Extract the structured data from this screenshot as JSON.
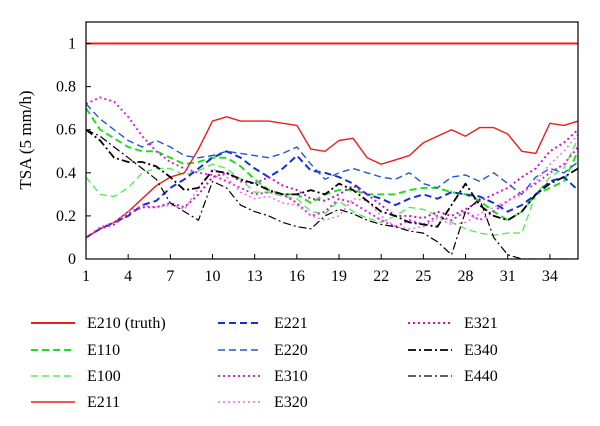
{
  "chart_data": {
    "type": "line",
    "ylabel": "TSA (5 mm/h)",
    "xlabel": "",
    "xlim": [
      1,
      36
    ],
    "ylim": [
      0,
      1.1
    ],
    "xticks": [
      1,
      4,
      7,
      10,
      13,
      16,
      19,
      22,
      25,
      28,
      31,
      34
    ],
    "yticks": [
      0,
      0.2,
      0.4,
      0.6,
      0.8,
      1
    ],
    "ytick_labels": [
      "0",
      "0.2",
      "0.4",
      "0.6",
      "0.8",
      "1"
    ],
    "grid": false,
    "legend_position": "bottom",
    "series": [
      {
        "name": "E210 (truth)",
        "color": "#e8201c",
        "dash": "solid",
        "width": 2.0,
        "x": [
          1,
          36
        ],
        "y": [
          1.0,
          1.0
        ]
      },
      {
        "name": "E110",
        "color": "#22dd22",
        "dash": "dashed",
        "width": 2.0,
        "x": [
          1,
          2,
          3,
          4,
          5,
          6,
          7,
          8,
          9,
          10,
          11,
          12,
          13,
          14,
          15,
          16,
          17,
          18,
          19,
          20,
          21,
          22,
          23,
          24,
          25,
          26,
          27,
          28,
          29,
          30,
          31,
          32,
          33,
          34,
          35,
          36
        ],
        "y": [
          0.7,
          0.6,
          0.56,
          0.52,
          0.5,
          0.5,
          0.47,
          0.44,
          0.45,
          0.47,
          0.47,
          0.43,
          0.37,
          0.32,
          0.3,
          0.3,
          0.26,
          0.3,
          0.32,
          0.32,
          0.3,
          0.3,
          0.3,
          0.32,
          0.33,
          0.33,
          0.31,
          0.3,
          0.27,
          0.22,
          0.18,
          0.22,
          0.3,
          0.33,
          0.36,
          0.5
        ]
      },
      {
        "name": "E100",
        "color": "#55ee55",
        "dash": "dashed",
        "width": 1.4,
        "x": [
          1,
          2,
          3,
          4,
          5,
          6,
          7,
          8,
          9,
          10,
          11,
          12,
          13,
          14,
          15,
          16,
          17,
          18,
          19,
          20,
          21,
          22,
          23,
          24,
          25,
          26,
          27,
          28,
          29,
          30,
          31,
          32,
          33,
          34,
          35,
          36
        ],
        "y": [
          0.38,
          0.3,
          0.29,
          0.33,
          0.4,
          0.42,
          0.42,
          0.39,
          0.41,
          0.44,
          0.42,
          0.37,
          0.31,
          0.31,
          0.29,
          0.28,
          0.22,
          0.21,
          0.27,
          0.22,
          0.19,
          0.17,
          0.2,
          0.24,
          0.23,
          0.2,
          0.17,
          0.14,
          0.12,
          0.11,
          0.12,
          0.12,
          0.3,
          0.38,
          0.42,
          0.56
        ]
      },
      {
        "name": "E211",
        "color": "#e8201c",
        "dash": "solid",
        "width": 1.4,
        "x": [
          1,
          2,
          3,
          4,
          5,
          6,
          7,
          8,
          9,
          10,
          11,
          12,
          13,
          14,
          15,
          16,
          17,
          18,
          19,
          20,
          21,
          22,
          23,
          24,
          25,
          26,
          27,
          28,
          29,
          30,
          31,
          32,
          33,
          34,
          35,
          36
        ],
        "y": [
          0.1,
          0.14,
          0.17,
          0.22,
          0.28,
          0.34,
          0.38,
          0.4,
          0.51,
          0.64,
          0.66,
          0.64,
          0.64,
          0.64,
          0.63,
          0.62,
          0.51,
          0.5,
          0.55,
          0.56,
          0.47,
          0.44,
          0.46,
          0.48,
          0.54,
          0.57,
          0.6,
          0.57,
          0.61,
          0.61,
          0.58,
          0.5,
          0.49,
          0.63,
          0.62,
          0.64
        ]
      },
      {
        "name": "E221",
        "color": "#1133cc",
        "dash": "dashed",
        "width": 2.0,
        "x": [
          1,
          2,
          3,
          4,
          5,
          6,
          7,
          8,
          9,
          10,
          11,
          12,
          13,
          14,
          15,
          16,
          17,
          18,
          19,
          20,
          21,
          22,
          23,
          24,
          25,
          26,
          27,
          28,
          29,
          30,
          31,
          32,
          33,
          34,
          35,
          36
        ],
        "y": [
          0.1,
          0.14,
          0.17,
          0.2,
          0.25,
          0.27,
          0.33,
          0.37,
          0.42,
          0.47,
          0.5,
          0.47,
          0.42,
          0.38,
          0.42,
          0.48,
          0.41,
          0.4,
          0.38,
          0.35,
          0.3,
          0.28,
          0.25,
          0.28,
          0.3,
          0.28,
          0.31,
          0.3,
          0.29,
          0.26,
          0.22,
          0.25,
          0.3,
          0.36,
          0.38,
          0.32
        ]
      },
      {
        "name": "E220",
        "color": "#2255dd",
        "dash": "dashed",
        "width": 1.4,
        "x": [
          1,
          2,
          3,
          4,
          5,
          6,
          7,
          8,
          9,
          10,
          11,
          12,
          13,
          14,
          15,
          16,
          17,
          18,
          19,
          20,
          21,
          22,
          23,
          24,
          25,
          26,
          27,
          28,
          29,
          30,
          31,
          32,
          33,
          34,
          35,
          36
        ],
        "y": [
          0.72,
          0.65,
          0.6,
          0.55,
          0.52,
          0.55,
          0.52,
          0.48,
          0.47,
          0.48,
          0.5,
          0.49,
          0.48,
          0.47,
          0.49,
          0.52,
          0.44,
          0.37,
          0.4,
          0.42,
          0.4,
          0.38,
          0.37,
          0.4,
          0.35,
          0.33,
          0.38,
          0.39,
          0.36,
          0.4,
          0.35,
          0.3,
          0.38,
          0.42,
          0.4,
          0.45
        ]
      },
      {
        "name": "E310",
        "color": "#dd22dd",
        "dash": "dotted",
        "width": 2.0,
        "x": [
          1,
          2,
          3,
          4,
          5,
          6,
          7,
          8,
          9,
          10,
          11,
          12,
          13,
          14,
          15,
          16,
          17,
          18,
          19,
          20,
          21,
          22,
          23,
          24,
          25,
          26,
          27,
          28,
          29,
          30,
          31,
          32,
          33,
          34,
          35,
          36
        ],
        "y": [
          0.72,
          0.75,
          0.73,
          0.66,
          0.57,
          0.5,
          0.45,
          0.42,
          0.4,
          0.39,
          0.36,
          0.33,
          0.3,
          0.31,
          0.3,
          0.26,
          0.2,
          0.22,
          0.28,
          0.26,
          0.22,
          0.18,
          0.15,
          0.18,
          0.16,
          0.2,
          0.18,
          0.22,
          0.18,
          0.22,
          0.27,
          0.31,
          0.35,
          0.4,
          0.44,
          0.52
        ]
      },
      {
        "name": "E320",
        "color": "#ee66ee",
        "dash": "dotted",
        "width": 1.4,
        "x": [
          1,
          2,
          3,
          4,
          5,
          6,
          7,
          8,
          9,
          10,
          11,
          12,
          13,
          14,
          15,
          16,
          17,
          18,
          19,
          20,
          21,
          22,
          23,
          24,
          25,
          26,
          27,
          28,
          29,
          30,
          31,
          32,
          33,
          34,
          35,
          36
        ],
        "y": [
          0.1,
          0.15,
          0.17,
          0.22,
          0.25,
          0.24,
          0.25,
          0.23,
          0.33,
          0.42,
          0.38,
          0.31,
          0.28,
          0.29,
          0.26,
          0.25,
          0.2,
          0.18,
          0.2,
          0.28,
          0.27,
          0.2,
          0.15,
          0.14,
          0.15,
          0.19,
          0.16,
          0.17,
          0.21,
          0.24,
          0.27,
          0.3,
          0.36,
          0.44,
          0.5,
          0.58
        ]
      },
      {
        "name": "E321",
        "color": "#cc11cc",
        "dash": "dotted",
        "width": 2.0,
        "x": [
          1,
          2,
          3,
          4,
          5,
          6,
          7,
          8,
          9,
          10,
          11,
          12,
          13,
          14,
          15,
          16,
          17,
          18,
          19,
          20,
          21,
          22,
          23,
          24,
          25,
          26,
          27,
          28,
          29,
          30,
          31,
          32,
          33,
          34,
          35,
          36
        ],
        "y": [
          0.1,
          0.14,
          0.16,
          0.21,
          0.24,
          0.24,
          0.26,
          0.24,
          0.3,
          0.38,
          0.4,
          0.36,
          0.35,
          0.38,
          0.34,
          0.32,
          0.28,
          0.27,
          0.3,
          0.34,
          0.3,
          0.25,
          0.2,
          0.2,
          0.19,
          0.22,
          0.2,
          0.23,
          0.27,
          0.3,
          0.33,
          0.38,
          0.42,
          0.5,
          0.54,
          0.6
        ]
      },
      {
        "name": "E340",
        "color": "#000000",
        "dash": "dashdot",
        "width": 1.8,
        "x": [
          1,
          2,
          3,
          4,
          5,
          6,
          7,
          8,
          9,
          10,
          11,
          12,
          13,
          14,
          15,
          16,
          17,
          18,
          19,
          20,
          21,
          22,
          23,
          24,
          25,
          26,
          27,
          28,
          29,
          30,
          31,
          32,
          33,
          34,
          35,
          36
        ],
        "y": [
          0.6,
          0.55,
          0.47,
          0.45,
          0.45,
          0.43,
          0.38,
          0.32,
          0.33,
          0.41,
          0.4,
          0.37,
          0.35,
          0.32,
          0.3,
          0.3,
          0.32,
          0.3,
          0.35,
          0.32,
          0.27,
          0.22,
          0.2,
          0.17,
          0.16,
          0.15,
          0.25,
          0.35,
          0.25,
          0.2,
          0.18,
          0.22,
          0.3,
          0.35,
          0.38,
          0.42
        ]
      },
      {
        "name": "E440",
        "color": "#000000",
        "dash": "dashdot",
        "width": 1.2,
        "x": [
          1,
          2,
          3,
          4,
          5,
          6,
          7,
          8,
          9,
          10,
          11,
          12,
          13,
          14,
          15,
          16,
          17,
          18,
          19,
          20,
          21,
          22,
          23,
          24,
          25,
          26,
          27,
          28,
          29,
          30,
          31,
          32,
          33,
          34,
          35,
          36
        ],
        "y": [
          0.6,
          0.57,
          0.52,
          0.47,
          0.42,
          0.37,
          0.26,
          0.22,
          0.18,
          0.36,
          0.33,
          0.25,
          0.22,
          0.2,
          0.17,
          0.15,
          0.14,
          0.2,
          0.23,
          0.21,
          0.18,
          0.16,
          0.15,
          0.13,
          0.12,
          0.08,
          0.02,
          0.22,
          0.28,
          0.1,
          0.02,
          0.0,
          0.0,
          0.0,
          0.0,
          0.0
        ]
      }
    ],
    "legend_columns": [
      [
        "E210 (truth)",
        "E110",
        "E100",
        "E211"
      ],
      [
        "E221",
        "E220",
        "E310",
        "E320"
      ],
      [
        "E321",
        "E340",
        "E440"
      ]
    ]
  }
}
